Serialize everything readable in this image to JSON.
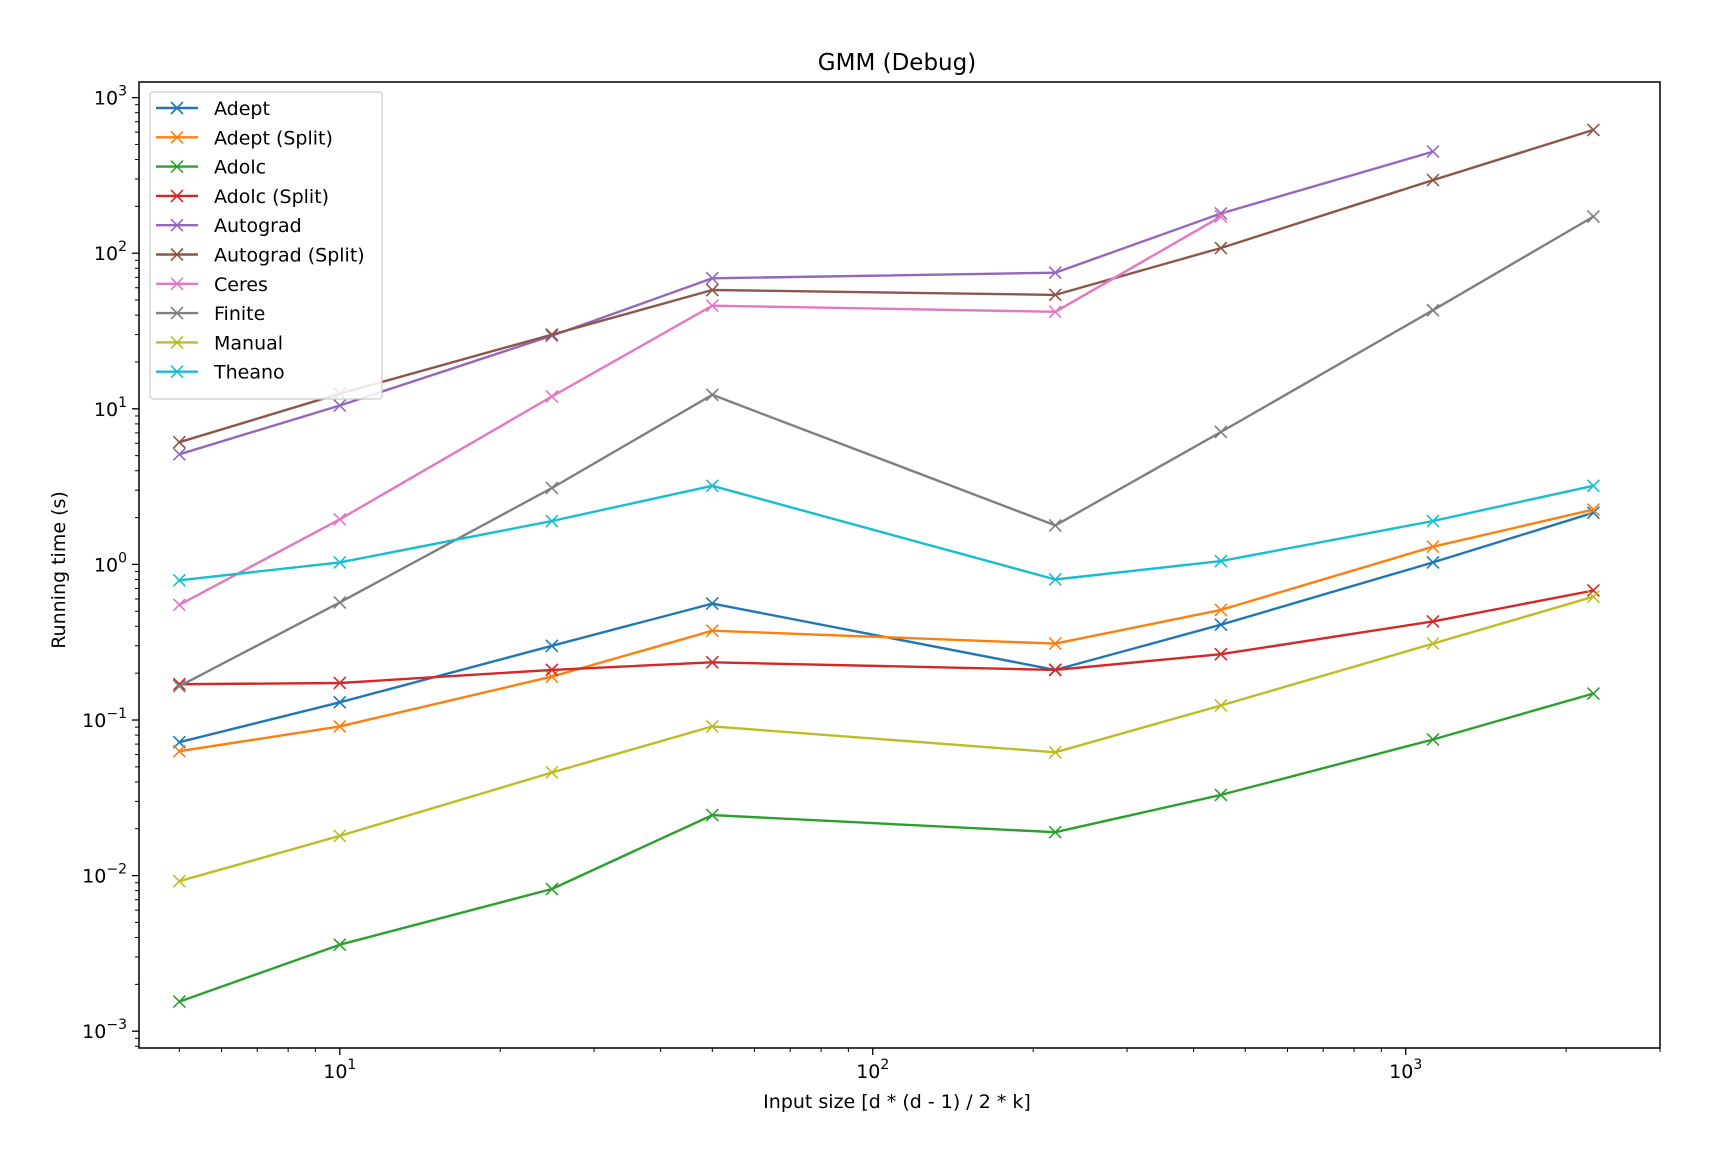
{
  "chart_data": {
    "type": "line",
    "title": "GMM (Debug)",
    "xlabel": "Input size [d * (d - 1) / 2 * k]",
    "ylabel": "Running time (s)",
    "xscale": "log",
    "yscale": "log",
    "xlim": [
      4.2,
      3000
    ],
    "ylim": [
      0.00078,
      1260
    ],
    "legend_position": "top-left",
    "grid": false,
    "x": [
      5,
      10,
      25,
      50,
      220,
      450,
      1125,
      2250
    ],
    "xticks": [
      {
        "value": 10,
        "base": "10",
        "exp": "1"
      },
      {
        "value": 100,
        "base": "10",
        "exp": "2"
      },
      {
        "value": 1000,
        "base": "10",
        "exp": "3"
      }
    ],
    "yticks": [
      {
        "value": 0.001,
        "base": "10",
        "exp": "−3"
      },
      {
        "value": 0.01,
        "base": "10",
        "exp": "−2"
      },
      {
        "value": 0.1,
        "base": "10",
        "exp": "−1"
      },
      {
        "value": 1,
        "base": "10",
        "exp": "0"
      },
      {
        "value": 10,
        "base": "10",
        "exp": "1"
      },
      {
        "value": 100,
        "base": "10",
        "exp": "2"
      },
      {
        "value": 1000,
        "base": "10",
        "exp": "3"
      }
    ],
    "series": [
      {
        "name": "Adept",
        "color": "#1f77b4",
        "values": [
          0.072,
          0.13,
          0.3,
          0.56,
          0.21,
          0.41,
          1.03,
          2.15
        ]
      },
      {
        "name": "Adept (Split)",
        "color": "#ff7f0e",
        "values": [
          0.063,
          0.091,
          0.19,
          0.375,
          0.31,
          0.51,
          1.3,
          2.25
        ]
      },
      {
        "name": "Adolc",
        "color": "#2ca02c",
        "values": [
          0.00155,
          0.0036,
          0.0082,
          0.0245,
          0.019,
          0.033,
          0.075,
          0.148
        ]
      },
      {
        "name": "Adolc (Split)",
        "color": "#d62728",
        "values": [
          0.17,
          0.173,
          0.21,
          0.235,
          0.21,
          0.265,
          0.43,
          0.68
        ]
      },
      {
        "name": "Autograd",
        "color": "#9467bd",
        "values": [
          5.1,
          10.5,
          29.5,
          69,
          75,
          180,
          450,
          null
        ]
      },
      {
        "name": "Autograd (Split)",
        "color": "#8c564b",
        "values": [
          6.1,
          12.5,
          30,
          58,
          54,
          108,
          295,
          620
        ]
      },
      {
        "name": "Ceres",
        "color": "#e377c2",
        "values": [
          0.55,
          1.95,
          12,
          46,
          42,
          172,
          null,
          null
        ]
      },
      {
        "name": "Finite",
        "color": "#7f7f7f",
        "values": [
          0.165,
          0.57,
          3.1,
          12.3,
          1.78,
          7.1,
          43,
          172
        ]
      },
      {
        "name": "Manual",
        "color": "#bcbd22",
        "values": [
          0.0092,
          0.018,
          0.046,
          0.091,
          0.062,
          0.124,
          0.31,
          0.62
        ]
      },
      {
        "name": "Theano",
        "color": "#17becf",
        "values": [
          0.79,
          1.03,
          1.9,
          3.2,
          0.8,
          1.05,
          1.9,
          3.2
        ]
      }
    ]
  }
}
